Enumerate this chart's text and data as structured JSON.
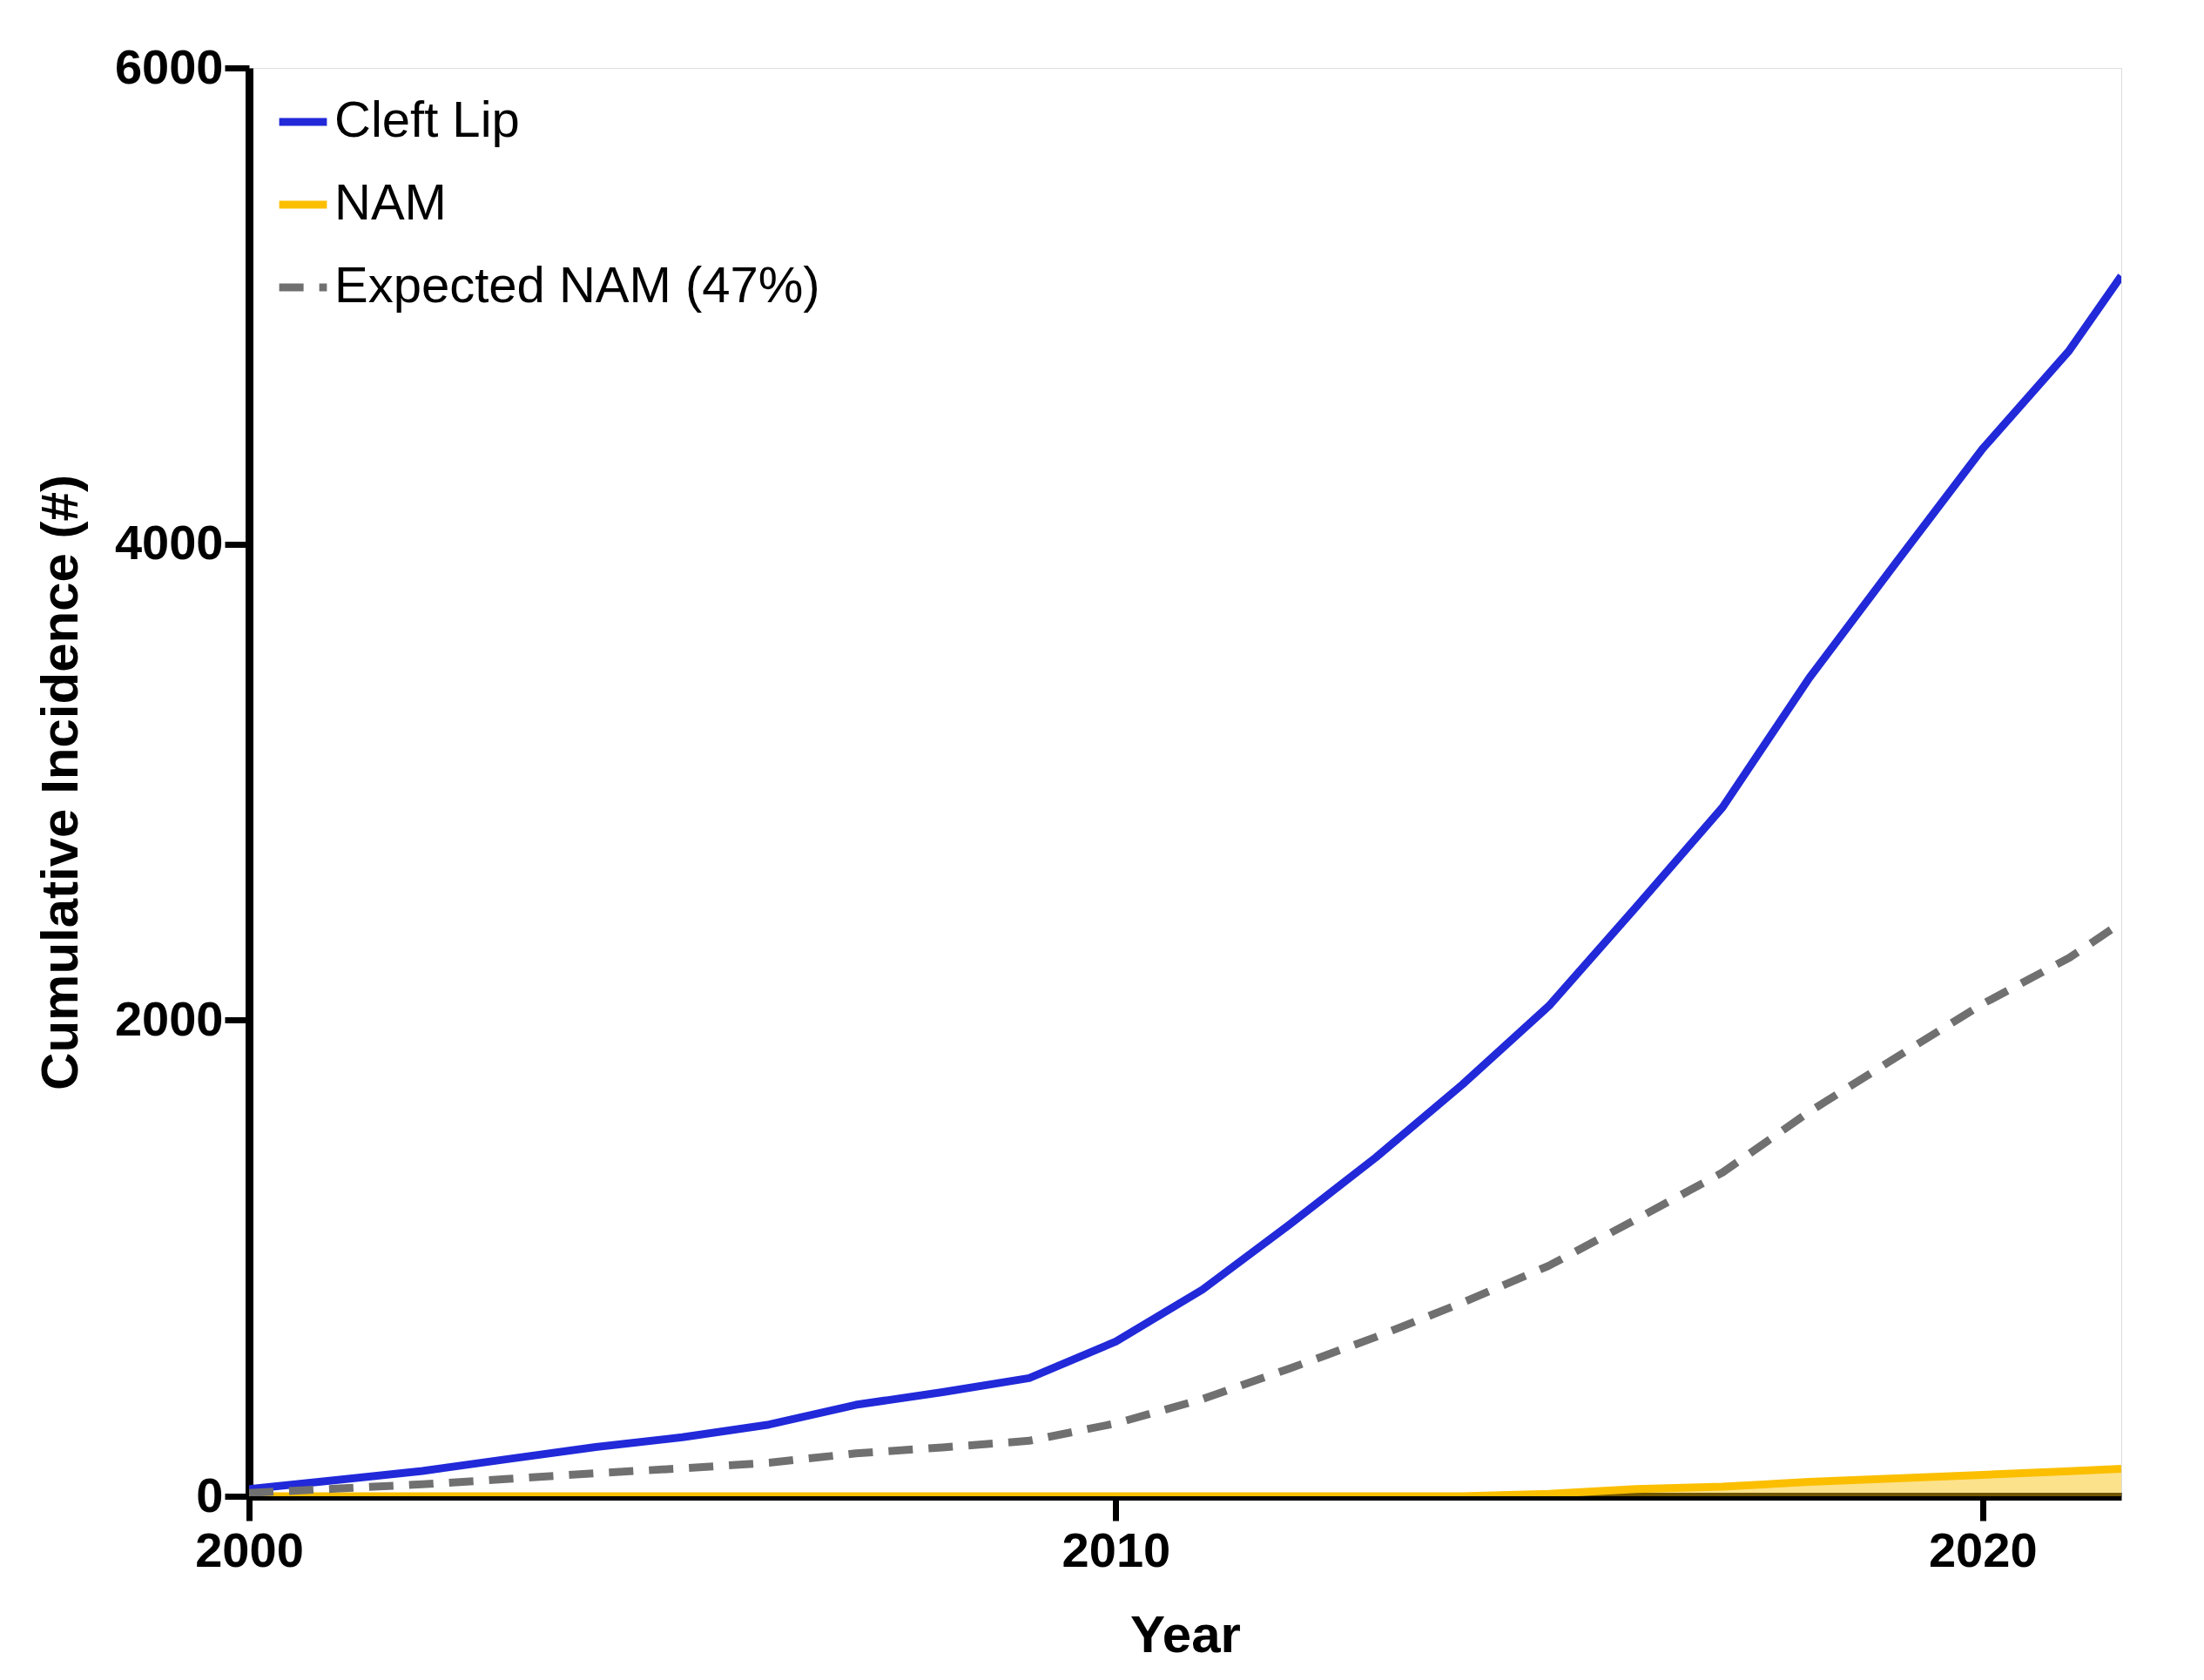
{
  "chart_data": {
    "type": "line",
    "xlabel": "Year",
    "ylabel": "Cumulative Incidence (#)",
    "x": [
      2000,
      2001,
      2002,
      2003,
      2004,
      2005,
      2006,
      2007,
      2008,
      2009,
      2010,
      2011,
      2012,
      2013,
      2014,
      2015,
      2016,
      2017,
      2018,
      2019,
      2020,
      2021,
      2021.6
    ],
    "series": [
      {
        "name": "Cleft Lip",
        "color": "#2129d9",
        "line_style": "solid",
        "values": [
          30,
          68,
          106,
          157,
          207,
          248,
          301,
          384,
          437,
          496,
          650,
          868,
          1140,
          1423,
          1730,
          2061,
          2474,
          2894,
          3437,
          3921,
          4400,
          4813,
          5126
        ]
      },
      {
        "name": "NAM",
        "type": "area",
        "color": "#fbbf00",
        "line_style": "solid",
        "values": [
          0,
          0,
          0,
          0,
          0,
          0,
          0,
          0,
          0,
          0,
          0,
          0,
          0,
          0,
          0,
          10,
          30,
          40,
          60,
          75,
          90,
          105,
          115
        ]
      },
      {
        "name": "Expected NAM (47%)",
        "color": "#707070",
        "line_style": "dashed",
        "values": [
          14,
          32,
          50,
          73,
          97,
          117,
          141,
          180,
          205,
          233,
          306,
          408,
          536,
          669,
          813,
          969,
          1163,
          1360,
          1615,
          1843,
          2068,
          2262,
          2409
        ]
      }
    ],
    "xlim": [
      2000,
      2021.6
    ],
    "xticks": [
      2000,
      2010,
      2020
    ],
    "ylim": [
      0,
      6000
    ],
    "yticks": [
      0,
      2000,
      4000,
      6000
    ],
    "grid": false,
    "legend": "top left",
    "marker": "none"
  }
}
